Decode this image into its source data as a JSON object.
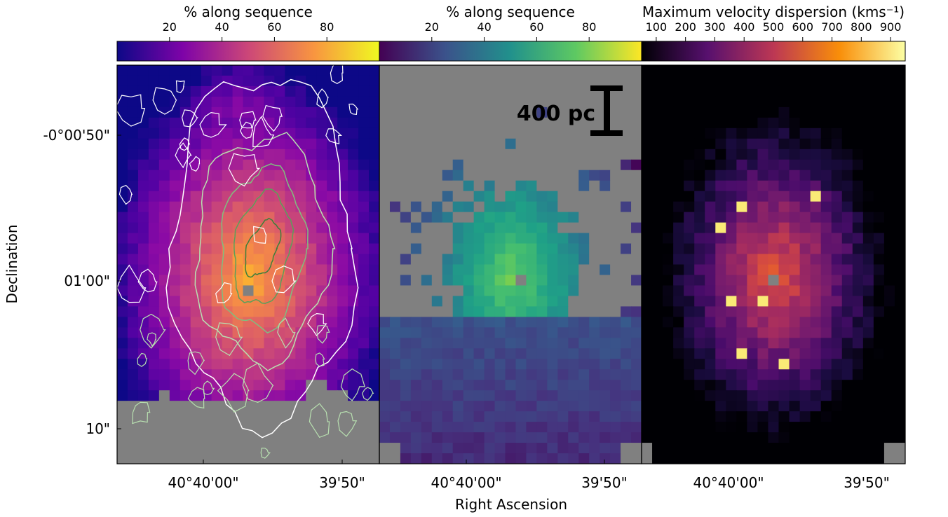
{
  "figure": {
    "xlabel": "Right Ascension",
    "ylabel": "Declination",
    "x_ticks": [
      "40°40'00\"",
      "39'50\""
    ],
    "y_ticks": [
      "-0°00'50\"",
      "01'00\"",
      "10\""
    ],
    "scale_bar": "400 pc"
  },
  "chart_data": [
    {
      "type": "heatmap",
      "panel": "left",
      "colorbar_label": "% along sequence",
      "colorbar_ticks": [
        "20",
        "40",
        "60",
        "80"
      ],
      "colormap": "plasma",
      "range": [
        0,
        100
      ],
      "masked_color": "#808080",
      "overlay": "contours",
      "contour_colors": [
        "#ffffff",
        "#b8e0b0",
        "#7fbf7f",
        "#5aa05a",
        "#3b7f3b"
      ]
    },
    {
      "type": "heatmap",
      "panel": "middle",
      "colorbar_label": "% along sequence",
      "colorbar_ticks": [
        "20",
        "40",
        "60",
        "80"
      ],
      "colormap": "viridis",
      "range": [
        0,
        100
      ],
      "masked_color": "#808080"
    },
    {
      "type": "heatmap",
      "panel": "right",
      "colorbar_label": "Maximum velocity dispersion (kms⁻¹)",
      "colorbar_ticks": [
        "100",
        "200",
        "300",
        "400",
        "500",
        "600",
        "700",
        "800",
        "900"
      ],
      "colormap": "inferno",
      "range": [
        50,
        950
      ],
      "masked_color": "#808080"
    }
  ]
}
